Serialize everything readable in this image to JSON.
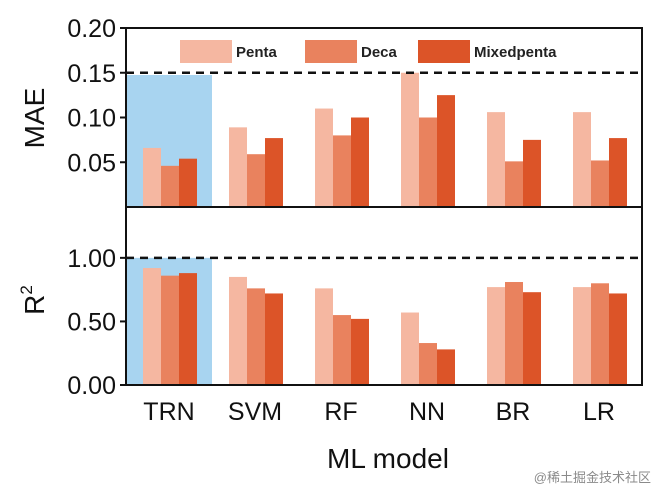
{
  "chart_data": {
    "type": "bar",
    "categories": [
      "TRN",
      "SVM",
      "RF",
      "NN",
      "BR",
      "LR"
    ],
    "xlabel": "ML model",
    "legend_placement": "top",
    "highlight_category": "TRN",
    "highlight_color": "#a8d4f0",
    "series_colors": [
      "#f5b7a1",
      "#e9825e",
      "#dc5428"
    ],
    "series_names": [
      "Penta",
      "Deca",
      "Mixedpenta"
    ],
    "panels": [
      {
        "ylabel": "MAE",
        "ylim": [
          0,
          0.2
        ],
        "yticks": [
          "0.05",
          "0.10",
          "0.15",
          "0.20"
        ],
        "yticks_values": [
          0.05,
          0.1,
          0.15,
          0.2
        ],
        "reference_line": 0.15,
        "series": [
          {
            "name": "Penta",
            "values": [
              0.066,
              0.089,
              0.11,
              0.15,
              0.106,
              0.106
            ]
          },
          {
            "name": "Deca",
            "values": [
              0.046,
              0.059,
              0.08,
              0.1,
              0.051,
              0.052
            ]
          },
          {
            "name": "Mixedpenta",
            "values": [
              0.054,
              0.077,
              0.1,
              0.125,
              0.075,
              0.077
            ]
          }
        ]
      },
      {
        "ylabel": "R",
        "ylabel_superscript": "2",
        "ylim": [
          0,
          1.4
        ],
        "yticks": [
          "0.00",
          "0.50",
          "1.00"
        ],
        "yticks_values": [
          0.0,
          0.5,
          1.0
        ],
        "reference_line": 1.0,
        "series": [
          {
            "name": "Penta",
            "values": [
              0.92,
              0.85,
              0.76,
              0.57,
              0.77,
              0.77
            ]
          },
          {
            "name": "Deca",
            "values": [
              0.86,
              0.76,
              0.55,
              0.33,
              0.81,
              0.8
            ]
          },
          {
            "name": "Mixedpenta",
            "values": [
              0.88,
              0.72,
              0.52,
              0.28,
              0.73,
              0.72
            ]
          }
        ]
      }
    ]
  },
  "watermark": "@稀土掘金技术社区"
}
